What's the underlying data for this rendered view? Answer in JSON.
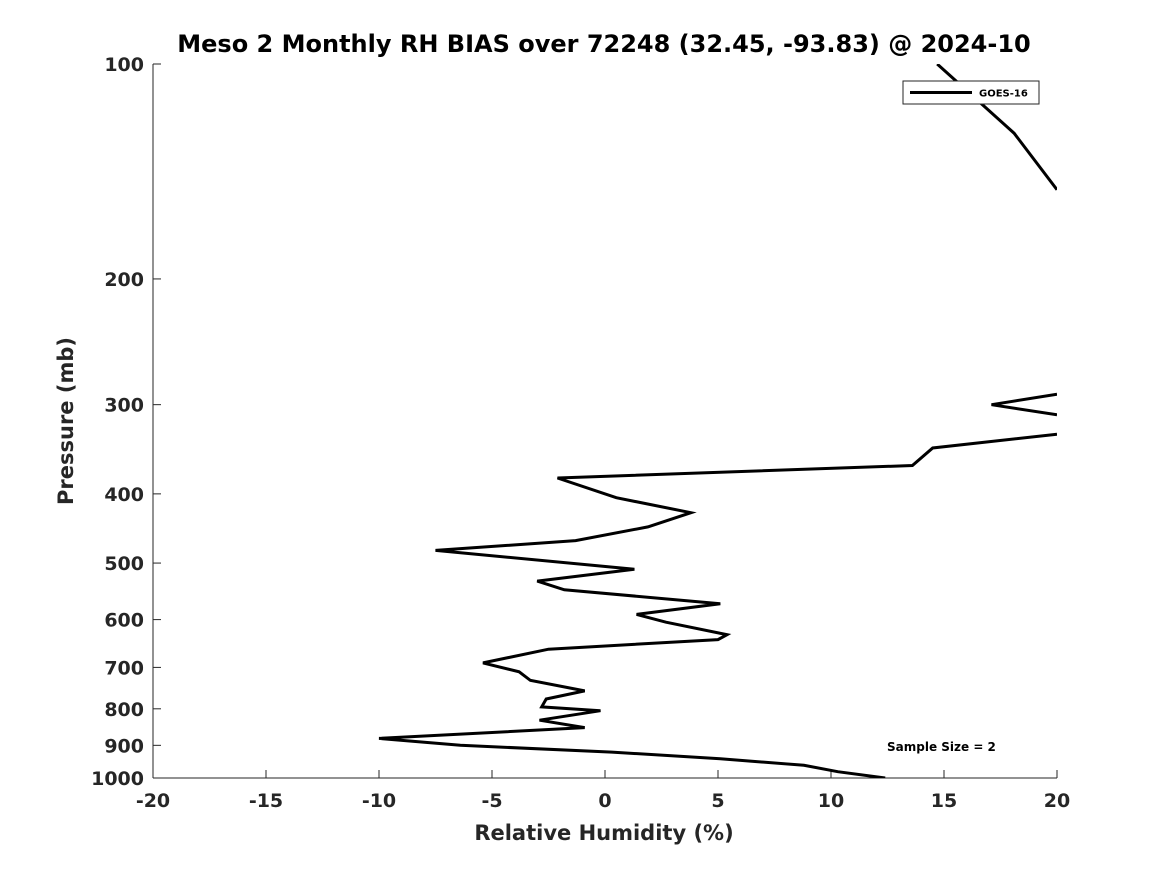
{
  "chart_data": {
    "type": "line",
    "title": "Meso 2 Monthly RH BIAS over 72248 (32.45, -93.83) @ 2024-10",
    "xlabel": "Relative Humidity (%)",
    "ylabel": "Pressure (mb)",
    "xlim": [
      -20,
      20
    ],
    "ylim": [
      100,
      1000
    ],
    "y_scale": "log",
    "y_reversed": true,
    "grid": false,
    "x_ticks": [
      -20,
      -15,
      -10,
      -5,
      0,
      5,
      10,
      15,
      20
    ],
    "y_ticks": [
      100,
      200,
      300,
      400,
      500,
      600,
      700,
      800,
      900,
      1000
    ],
    "legend": {
      "position": "top-right"
    },
    "annotation": "Sample Size = 2",
    "series": [
      {
        "name": "GOES-16",
        "color": "#000000",
        "segments": [
          [
            [
              14.7,
              100
            ],
            [
              18.1,
              125
            ],
            [
              20,
              150
            ]
          ],
          [
            [
              20,
              290
            ],
            [
              17.1,
              300
            ],
            [
              20,
              310
            ]
          ],
          [
            [
              20,
              330
            ],
            [
              14.5,
              345
            ],
            [
              13.6,
              365
            ],
            [
              -2.1,
              380
            ],
            [
              0.5,
              405
            ],
            [
              3.8,
              425
            ],
            [
              1.9,
              445
            ],
            [
              -1.3,
              465
            ],
            [
              -7.5,
              480
            ],
            [
              1.3,
              510
            ],
            [
              -3.0,
              530
            ],
            [
              -1.8,
              545
            ],
            [
              5.1,
              570
            ],
            [
              1.4,
              590
            ],
            [
              2.7,
              605
            ],
            [
              5.4,
              630
            ],
            [
              5.0,
              640
            ],
            [
              -2.5,
              660
            ],
            [
              -5.4,
              690
            ],
            [
              -3.8,
              710
            ],
            [
              -3.3,
              730
            ],
            [
              -0.9,
              755
            ],
            [
              -2.6,
              775
            ],
            [
              -2.8,
              795
            ],
            [
              -0.2,
              805
            ],
            [
              -2.9,
              830
            ],
            [
              -0.9,
              850
            ],
            [
              -10.0,
              880
            ],
            [
              -6.4,
              900
            ],
            [
              0.3,
              920
            ],
            [
              5.1,
              940
            ],
            [
              8.8,
              960
            ],
            [
              10.3,
              980
            ],
            [
              12.4,
              1000
            ]
          ]
        ]
      }
    ]
  }
}
